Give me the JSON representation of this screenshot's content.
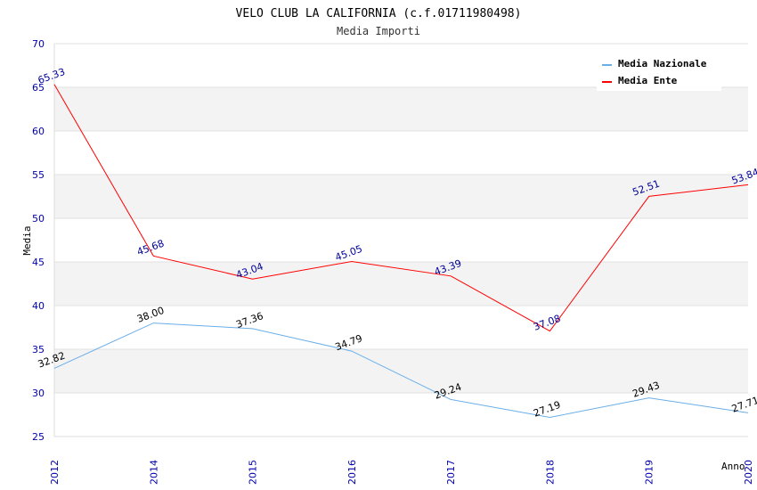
{
  "chart_data": {
    "type": "line",
    "title": "VELO CLUB LA CALIFORNIA (c.f.01711980498)",
    "subtitle": "Media Importi",
    "xlabel": "Anno",
    "ylabel": "Media",
    "ylim": [
      25,
      70
    ],
    "yticks": [
      25,
      30,
      35,
      40,
      45,
      50,
      55,
      60,
      65,
      70
    ],
    "categories": [
      "2012",
      "2014",
      "2015",
      "2016",
      "2017",
      "2018",
      "2019",
      "2020"
    ],
    "grid": true,
    "legend_position": "top-right",
    "series": [
      {
        "name": "Media Nazionale",
        "color": "#6aaee8",
        "label_color": "#000000",
        "values": [
          32.82,
          38.0,
          37.36,
          34.79,
          29.24,
          27.19,
          29.43,
          27.71
        ],
        "labels": [
          "32.82",
          "38.00",
          "37.36",
          "34.79",
          "29.24",
          "27.19",
          "29.43",
          "27.71"
        ]
      },
      {
        "name": "Media Ente",
        "color": "#ff0000",
        "label_color": "#000099",
        "values": [
          65.33,
          45.68,
          43.04,
          45.05,
          43.39,
          37.08,
          52.51,
          53.84
        ],
        "labels": [
          "65.33",
          "45.68",
          "43.04",
          "45.05",
          "43.39",
          "37.08",
          "52.51",
          "53.84"
        ]
      }
    ]
  }
}
